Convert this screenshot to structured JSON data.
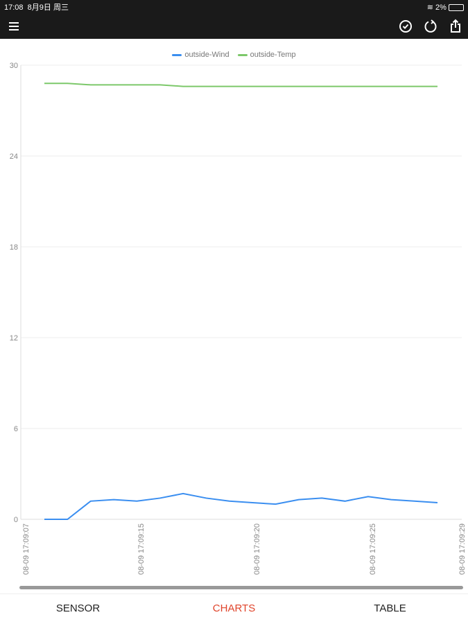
{
  "status_bar": {
    "time": "17:08",
    "date": "8月9日 周三",
    "battery": "2%"
  },
  "toolbar": {
    "icons": [
      "menu-icon",
      "check-circle-icon",
      "refresh-icon",
      "share-icon"
    ]
  },
  "tabs": [
    {
      "label": "SENSOR",
      "active": false
    },
    {
      "label": "CHARTS",
      "active": true
    },
    {
      "label": "TABLE",
      "active": false
    }
  ],
  "colors": {
    "wind": "#3a8ef0",
    "temp": "#7cc86a",
    "active_tab": "#e0442b"
  },
  "chart_data": {
    "type": "line",
    "legend_position": "top",
    "ylim": [
      0,
      30
    ],
    "yticks": [
      "0",
      "6",
      "12",
      "18",
      "24",
      "30"
    ],
    "xticks": [
      "08-09 17:09:07",
      "08-09 17:09:15",
      "08-09 17:09:20",
      "08-09 17:09:25",
      "08-09 17:09:29"
    ],
    "grid": true,
    "series": [
      {
        "name": "outside-Wind",
        "values": [
          0,
          0,
          1.2,
          1.3,
          1.2,
          1.4,
          1.7,
          1.4,
          1.2,
          1.1,
          1.0,
          1.3,
          1.4,
          1.2,
          1.5,
          1.3,
          1.2,
          1.1
        ]
      },
      {
        "name": "outside-Temp",
        "values": [
          28.8,
          28.8,
          28.7,
          28.7,
          28.7,
          28.7,
          28.6,
          28.6,
          28.6,
          28.6,
          28.6,
          28.6,
          28.6,
          28.6,
          28.6,
          28.6,
          28.6,
          28.6
        ]
      }
    ]
  }
}
